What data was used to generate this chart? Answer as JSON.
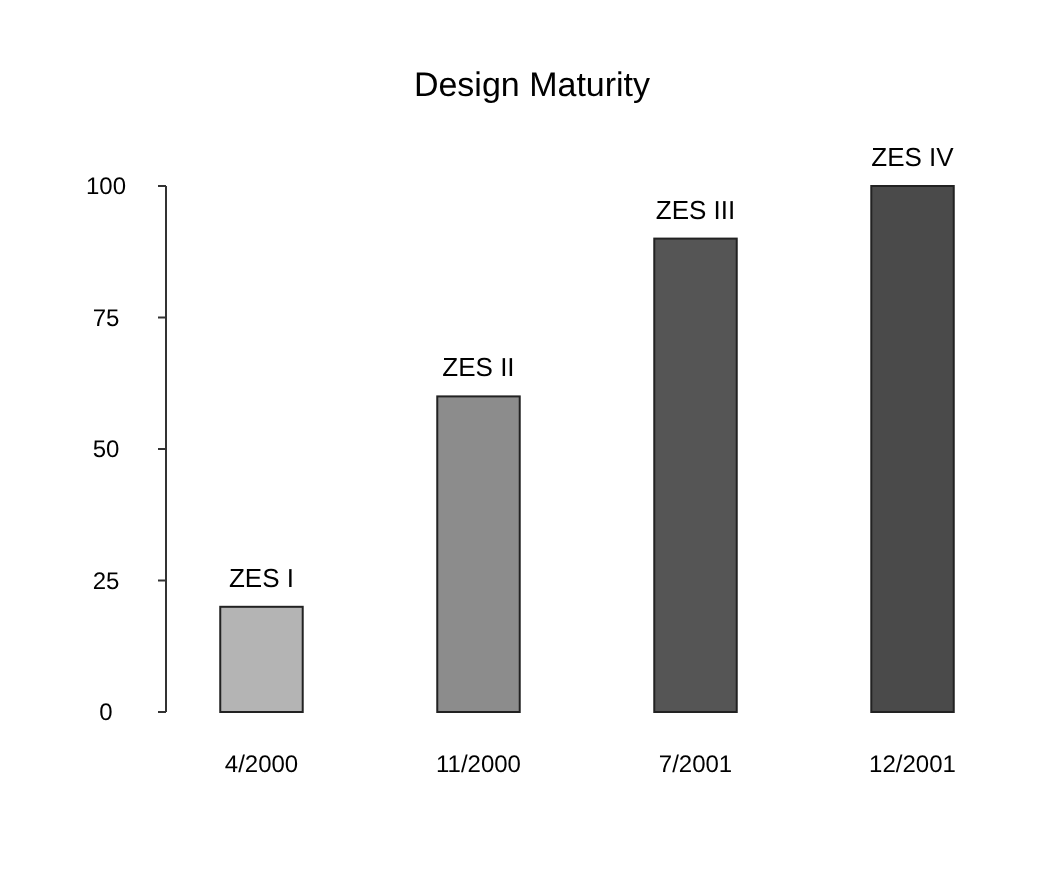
{
  "chart_data": {
    "type": "bar",
    "title": "Design Maturity",
    "categories": [
      "4/2000",
      "11/2000",
      "7/2001",
      "12/2001"
    ],
    "values": [
      20,
      60,
      90,
      100
    ],
    "value_labels": [
      "ZES I",
      "ZES II",
      "ZES III",
      "ZES IV"
    ],
    "colors": [
      "#b4b4b4",
      "#8c8c8c",
      "#555555",
      "#4a4a4a"
    ],
    "ylim": [
      0,
      100
    ],
    "yticks": [
      0,
      25,
      50,
      75,
      100
    ],
    "grid": false
  }
}
